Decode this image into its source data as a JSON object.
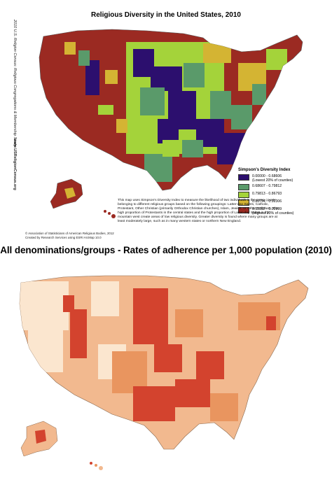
{
  "top_map": {
    "title": "Religious Diversity in the United States, 2010",
    "side_text_1": "2010 U.S. Religion Census: Religious Congregations & Membership Study",
    "side_url": "www.USReligionCensus.org",
    "legend_title": "Simpson's Diversity Index",
    "legend": [
      {
        "range": "0.00000 - 0.68606",
        "note": "(Lowest 20% of counties)",
        "color": "#2c0f6e"
      },
      {
        "range": "0.68607 - 0.79812",
        "note": "",
        "color": "#5a9a6a"
      },
      {
        "range": "0.79813 - 0.86793",
        "note": "",
        "color": "#a4d33a"
      },
      {
        "range": "0.86794 - 0.92306",
        "note": "",
        "color": "#d4b433"
      },
      {
        "range": "0.92307 - 0.99999",
        "note": "(Highest 20% of counties)",
        "color": "#9b2a22"
      }
    ],
    "description": "This map uses Simpson's Diversity Index to measure the likelihood of two individuals in the same county belonging to different religious groups based on the following groupings: Latter-day Saints, Catholic, Protestant, Other Christian (primarily Orthodox Christian churches), Islam, Jewish, or Other Religions. The high proportion of Protestants in the central states and the high proportion of Latter-day Saints in the mountain west create areas of low religious diversity. Greater diversity is found where many groups are at least moderately large, such as in many western states or northern New England.",
    "credit_line_1": "© Association of Statisticians of American Religious Bodies, 2012",
    "credit_line_2": "Created by Research Services using ESRI ArcMap 10.0"
  },
  "bottom_map": {
    "title": "All denominations/groups - Rates of adherence per 1,000 population (2010)",
    "colors": {
      "low": "#fbe6cf",
      "mid": "#f2b98f",
      "midhigh": "#e9955f",
      "high": "#d3432e"
    }
  }
}
